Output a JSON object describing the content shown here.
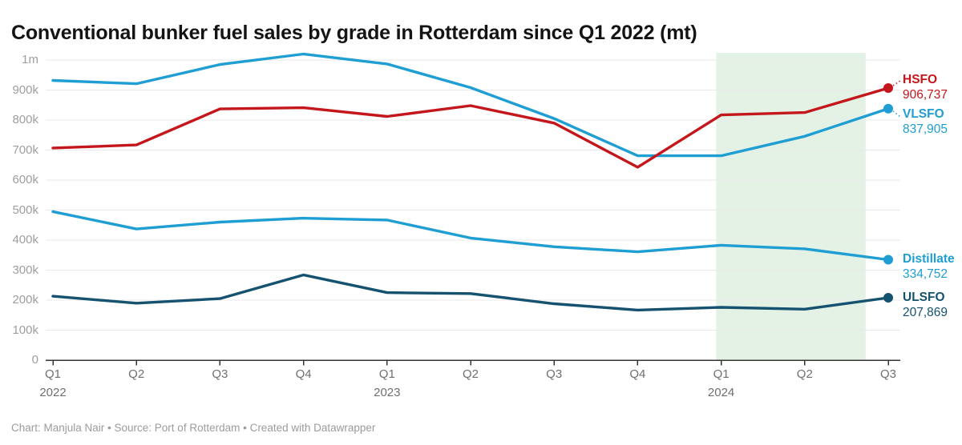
{
  "title": "Conventional bunker fuel sales by grade in Rotterdam since Q1 2022 (mt)",
  "footer": {
    "text": "Chart: Manjula Nair • Source: Port of Rotterdam • Created with Datawrapper"
  },
  "colors": {
    "highlight_band": "#e4f2e6",
    "gridline": "#e9e9e9",
    "axis": "#333333",
    "y_tick_text": "#9e9e9e",
    "x_tick_text": "#6f6f6f",
    "title_text": "#141414",
    "footer_text": "#9b9b9b"
  },
  "chart_data": {
    "type": "line",
    "title": "Conventional bunker fuel sales by grade in Rotterdam since Q1 2022 (mt)",
    "xlabel": "",
    "ylabel": "",
    "ylim": [
      0,
      1000000
    ],
    "grid": "horizontal",
    "legend_position": "right-edge-direct-labels",
    "x": [
      {
        "quarter": "Q1",
        "year": "2022"
      },
      {
        "quarter": "Q2",
        "year": ""
      },
      {
        "quarter": "Q3",
        "year": ""
      },
      {
        "quarter": "Q4",
        "year": ""
      },
      {
        "quarter": "Q1",
        "year": "2023"
      },
      {
        "quarter": "Q2",
        "year": ""
      },
      {
        "quarter": "Q3",
        "year": ""
      },
      {
        "quarter": "Q4",
        "year": ""
      },
      {
        "quarter": "Q1",
        "year": "2024"
      },
      {
        "quarter": "Q2",
        "year": ""
      },
      {
        "quarter": "Q3",
        "year": ""
      }
    ],
    "y_ticks": [
      {
        "value": 0,
        "label": "0"
      },
      {
        "value": 100000,
        "label": "100k"
      },
      {
        "value": 200000,
        "label": "200k"
      },
      {
        "value": 300000,
        "label": "300k"
      },
      {
        "value": 400000,
        "label": "400k"
      },
      {
        "value": 500000,
        "label": "500k"
      },
      {
        "value": 600000,
        "label": "600k"
      },
      {
        "value": 700000,
        "label": "700k"
      },
      {
        "value": 800000,
        "label": "800k"
      },
      {
        "value": 900000,
        "label": "900k"
      },
      {
        "value": 1000000,
        "label": "1m"
      }
    ],
    "highlight_region": {
      "start_x_index": 7.94,
      "end_x_index": 9.73,
      "color": "#e4f2e6"
    },
    "series": [
      {
        "name": "HSFO",
        "color": "#c4171c",
        "values": [
          707000,
          717000,
          837000,
          841000,
          812000,
          848000,
          790000,
          643000,
          817000,
          825000,
          906737
        ],
        "end_label_value": "906,737"
      },
      {
        "name": "VLSFO",
        "color": "#1e9ed2",
        "values": [
          932000,
          921000,
          985000,
          1020000,
          987000,
          908000,
          805000,
          681000,
          681000,
          746000,
          837905
        ],
        "end_label_value": "837,905"
      },
      {
        "name": "Distillate",
        "color": "#1e9ed2",
        "values": [
          495000,
          437000,
          460000,
          473000,
          467000,
          407000,
          378000,
          361000,
          383000,
          371000,
          334752
        ],
        "end_label_value": "334,752"
      },
      {
        "name": "ULSFO",
        "color": "#15526f",
        "values": [
          213000,
          190000,
          205000,
          284000,
          225000,
          222000,
          188000,
          167000,
          176000,
          170000,
          207869
        ],
        "end_label_value": "207,869"
      }
    ]
  }
}
